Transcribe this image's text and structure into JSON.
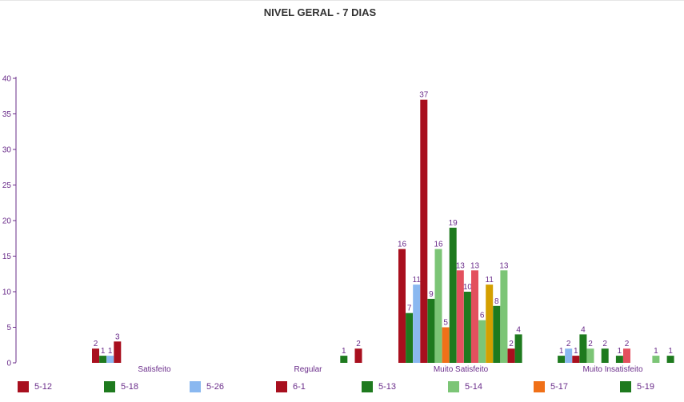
{
  "chart_data": {
    "type": "bar",
    "title": "NIVEL GERAL - 7 DIAS",
    "xlabel": "",
    "ylabel": "",
    "ylim": [
      0,
      40
    ],
    "y_ticks": [
      0,
      5,
      10,
      15,
      20,
      25,
      30,
      35,
      40
    ],
    "categories": [
      "Satisfeito",
      "Regular",
      "Muito Satisfeito",
      "Muito Insatisfeito"
    ],
    "grid": false,
    "legend_position": "bottom",
    "series": [
      {
        "name": "5-12",
        "color": "#a80f1e",
        "values": [
          2,
          0,
          16,
          0
        ]
      },
      {
        "name": "5-18",
        "color": "#1e7a1e",
        "values": [
          1,
          0,
          7,
          1
        ]
      },
      {
        "name": "5-26",
        "color": "#8ab8f0",
        "values": [
          1,
          0,
          11,
          2
        ]
      },
      {
        "name": "6-1",
        "color": "#a80f1e",
        "values": [
          3,
          0,
          37,
          1
        ]
      },
      {
        "name": "5-13",
        "color": "#1e7a1e",
        "values": [
          0,
          0,
          9,
          4
        ]
      },
      {
        "name": "5-14",
        "color": "#7cc576",
        "values": [
          0,
          0,
          16,
          2
        ]
      },
      {
        "name": "5-17",
        "color": "#f07018",
        "values": [
          0,
          0,
          5,
          0
        ]
      },
      {
        "name": "5-19",
        "color": "#1e7a1e",
        "values": [
          0,
          0,
          19,
          2
        ]
      },
      {
        "name": "",
        "color": "#e3505e",
        "values": [
          0,
          0,
          13,
          0
        ]
      },
      {
        "name": "",
        "color": "#1e7a1e",
        "values": [
          0,
          0,
          10,
          1
        ]
      },
      {
        "name": "",
        "color": "#e3505e",
        "values": [
          0,
          0,
          13,
          2
        ]
      },
      {
        "name": "",
        "color": "#7cc576",
        "values": [
          0,
          0,
          6,
          0
        ]
      },
      {
        "name": "",
        "color": "#d4a000",
        "values": [
          0,
          0,
          11,
          0
        ]
      },
      {
        "name": "",
        "color": "#1e7a1e",
        "values": [
          0,
          1,
          8,
          0
        ]
      },
      {
        "name": "",
        "color": "#7cc576",
        "values": [
          0,
          0,
          13,
          1
        ]
      },
      {
        "name": "",
        "color": "#a80f1e",
        "values": [
          0,
          2,
          2,
          0
        ]
      },
      {
        "name": "",
        "color": "#1e7a1e",
        "values": [
          0,
          0,
          4,
          1
        ]
      }
    ]
  }
}
